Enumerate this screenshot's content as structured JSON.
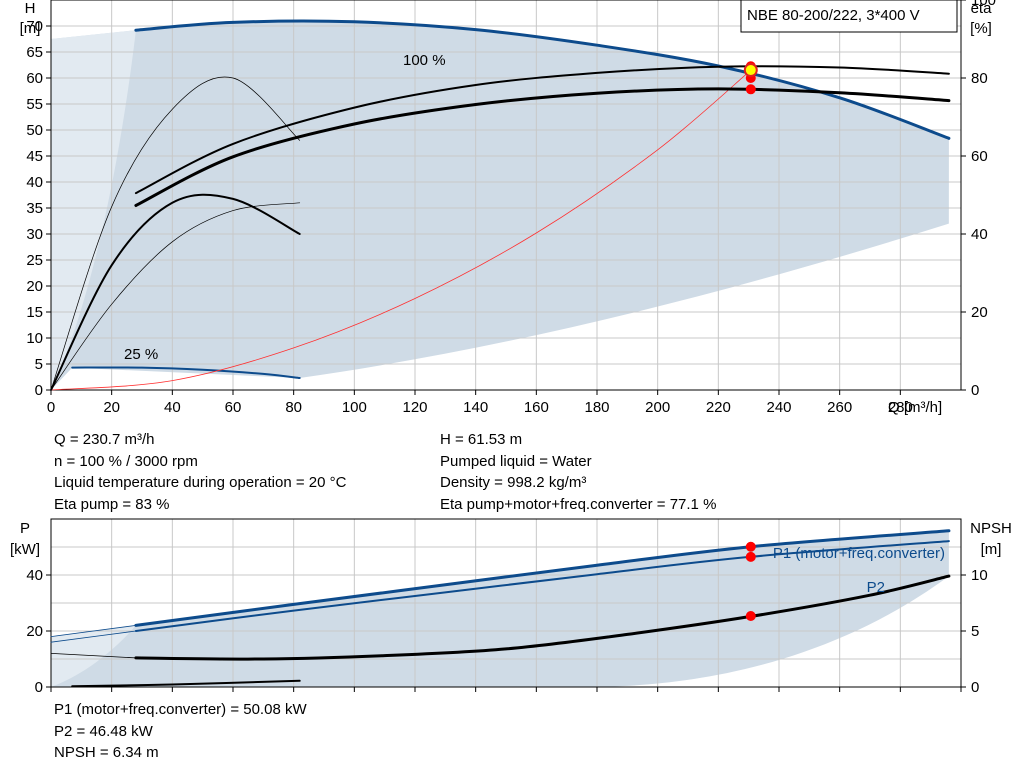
{
  "chart_data": [
    {
      "type": "line",
      "title": "NBE 80-200/222, 3*400 V",
      "xlabel": "Q [m³/h]",
      "ylabel": "H\n[m]",
      "y2label": "eta\n[%]",
      "xlim": [
        0,
        300
      ],
      "ylim": [
        0,
        75
      ],
      "y2lim": [
        0,
        100
      ],
      "xticks": [
        0,
        20,
        40,
        60,
        80,
        100,
        120,
        140,
        160,
        180,
        200,
        220,
        240,
        260,
        280
      ],
      "yticks": [
        0,
        5,
        10,
        15,
        20,
        25,
        30,
        35,
        40,
        45,
        50,
        55,
        60,
        65,
        70
      ],
      "y2ticks": [
        0,
        20,
        40,
        60,
        80,
        100
      ],
      "grid": true,
      "annotations": [
        "100 %",
        "25 %"
      ],
      "operating_point": {
        "x": 230.7,
        "y": 61.53,
        "color": "#ffff00"
      },
      "series": [
        {
          "role": "head-100",
          "axis": "y",
          "color": "#0d4b8c",
          "width": 3,
          "x": [
            28,
            60,
            100,
            140,
            180,
            220,
            260,
            296
          ],
          "y": [
            69.2,
            70.7,
            70.8,
            69.3,
            66.3,
            62.3,
            56.2,
            48.4
          ]
        },
        {
          "role": "head-25",
          "axis": "y",
          "color": "#0d4b8c",
          "width": 2,
          "x": [
            7,
            30,
            50,
            70,
            82
          ],
          "y": [
            4.3,
            4.3,
            3.9,
            3.1,
            2.3
          ]
        },
        {
          "role": "system-curve",
          "axis": "y",
          "color": "#ff3030",
          "width": 0.8,
          "x": [
            0,
            40,
            80,
            120,
            160,
            200,
            230.7
          ],
          "y": [
            0,
            1.8,
            8.1,
            17.6,
            30.2,
            46.2,
            61.5
          ]
        },
        {
          "role": "eta-pump",
          "axis": "y2",
          "color": "#000000",
          "width": 2,
          "x": [
            28,
            60,
            100,
            140,
            180,
            220,
            260,
            296
          ],
          "y": [
            50.5,
            63.1,
            72.4,
            78.2,
            81.3,
            82.9,
            82.7,
            81.1
          ]
        },
        {
          "role": "eta-total",
          "axis": "y2",
          "color": "#000000",
          "width": 3,
          "x": [
            28,
            60,
            100,
            140,
            180,
            220,
            260,
            296
          ],
          "y": [
            47.3,
            59.8,
            68.2,
            73.2,
            76.1,
            77.2,
            76.2,
            74.2
          ]
        },
        {
          "role": "eta-low-1",
          "axis": "y2",
          "color": "#000000",
          "width": 0.7,
          "x": [
            0,
            20,
            40,
            60,
            82
          ],
          "y": [
            0,
            47,
            72,
            80,
            64
          ]
        },
        {
          "role": "eta-low-2",
          "axis": "y2",
          "color": "#000000",
          "width": 2,
          "x": [
            0,
            20,
            40,
            60,
            82
          ],
          "y": [
            0,
            32,
            48,
            49,
            40
          ]
        },
        {
          "role": "eta-low-3",
          "axis": "y2",
          "color": "#000000",
          "width": 0.7,
          "x": [
            0,
            20,
            40,
            60,
            82
          ],
          "y": [
            0,
            22,
            38,
            46,
            48
          ]
        }
      ],
      "markers": [
        {
          "x": 230.7,
          "y": 83,
          "axis": "y2",
          "color": "#ff0000"
        },
        {
          "x": 230.7,
          "y": 80,
          "axis": "y2",
          "color": "#ff0000"
        },
        {
          "x": 230.7,
          "y": 77.1,
          "axis": "y2",
          "color": "#ff0000"
        }
      ],
      "envelope_color": "#cfdbe6"
    },
    {
      "type": "line",
      "ylabel": "P\n[kW]",
      "y2label": "NPSH\n[m]",
      "xlim": [
        0,
        300
      ],
      "ylim": [
        0,
        60
      ],
      "y2lim": [
        0,
        15
      ],
      "yticks": [
        0,
        20,
        40
      ],
      "y2ticks": [
        0,
        5,
        10
      ],
      "grid": true,
      "series": [
        {
          "name": "P1 (motor+freq.converter)",
          "role": "p1",
          "axis": "y",
          "color": "#0d4b8c",
          "width": 3,
          "x": [
            28,
            80,
            130,
            180,
            230.7,
            296
          ],
          "y": [
            22,
            29.5,
            36.5,
            43.5,
            50.1,
            55.8
          ]
        },
        {
          "name": "P2",
          "role": "p2",
          "axis": "y",
          "color": "#0d4b8c",
          "width": 2,
          "x": [
            28,
            80,
            130,
            180,
            230.7,
            296
          ],
          "y": [
            20,
            27.3,
            33.8,
            40.3,
            46.5,
            52.1
          ]
        },
        {
          "role": "npsh",
          "axis": "y2",
          "color": "#000000",
          "width": 3,
          "x": [
            28,
            70,
            110,
            150,
            190,
            230.7,
            270,
            296
          ],
          "y": [
            2.6,
            2.5,
            2.8,
            3.4,
            4.7,
            6.3,
            8.2,
            9.9
          ]
        },
        {
          "role": "p1-ext",
          "axis": "y",
          "color": "#0d4b8c",
          "width": 0.8,
          "x": [
            0,
            28
          ],
          "y": [
            18,
            22
          ]
        },
        {
          "role": "p2-ext",
          "axis": "y",
          "color": "#0d4b8c",
          "width": 0.8,
          "x": [
            0,
            28
          ],
          "y": [
            16,
            20
          ]
        },
        {
          "role": "npsh-ext",
          "axis": "y2",
          "color": "#000000",
          "width": 0.8,
          "x": [
            0,
            28
          ],
          "y": [
            3,
            2.6
          ]
        },
        {
          "role": "p-low",
          "axis": "y",
          "color": "#000000",
          "width": 2,
          "x": [
            7,
            40,
            82
          ],
          "y": [
            0.3,
            0.9,
            2.2
          ]
        }
      ],
      "markers": [
        {
          "x": 230.7,
          "y": 50.08,
          "axis": "y",
          "color": "#ff0000"
        },
        {
          "x": 230.7,
          "y": 46.48,
          "axis": "y",
          "color": "#ff0000"
        },
        {
          "x": 230.7,
          "y": 6.34,
          "axis": "y2",
          "color": "#ff0000"
        }
      ],
      "envelope_color": "#cfdbe6"
    }
  ],
  "info_top": {
    "left": [
      "Q = 230.7 m³/h",
      "n = 100 % / 3000 rpm",
      "Liquid temperature during operation = 20 °C",
      "Eta pump = 83 %"
    ],
    "right": [
      "H = 61.53 m",
      "Pumped liquid = Water",
      "Density = 998.2 kg/m³",
      "Eta pump+motor+freq.converter = 77.1 %"
    ]
  },
  "info_bottom": [
    "P1 (motor+freq.converter) = 50.08 kW",
    "P2 = 46.48 kW",
    "NPSH = 6.34 m"
  ]
}
